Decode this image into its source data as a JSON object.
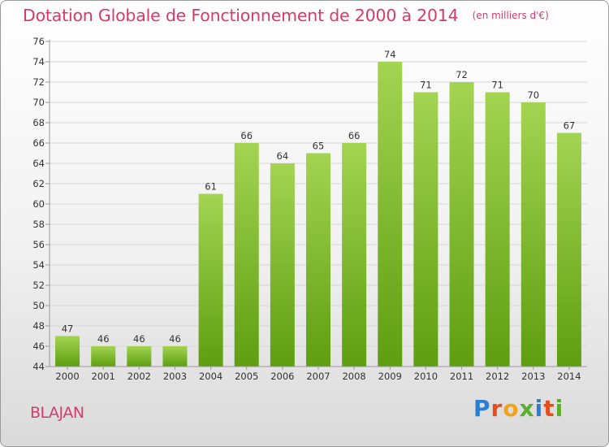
{
  "title": "Dotation Globale de Fonctionnement de 2000 à 2014",
  "unit_label": "(en milliers d'€)",
  "commune": "BLAJAN",
  "logo": {
    "text": "Proxiti",
    "colors": [
      "#2a7fd4",
      "#e84e1b",
      "#f3a21a",
      "#5aae2e",
      "#2a7fd4",
      "#e84e1b",
      "#5aae2e"
    ]
  },
  "colors": {
    "title": "#d83a6a",
    "bar_light": "#a3d452",
    "bar_dark": "#5e9e10",
    "grid": "#d6d6d6",
    "axis": "#999999",
    "text": "#333333"
  },
  "chart_data": {
    "type": "bar",
    "title": "Dotation Globale de Fonctionnement de 2000 à 2014",
    "xlabel": "",
    "ylabel": "",
    "ylim": [
      44,
      76
    ],
    "ytick_step": 2,
    "grid": true,
    "categories": [
      "2000",
      "2001",
      "2002",
      "2003",
      "2004",
      "2005",
      "2006",
      "2007",
      "2008",
      "2009",
      "2010",
      "2011",
      "2012",
      "2013",
      "2014"
    ],
    "values": [
      47,
      46,
      46,
      46,
      61,
      66,
      64,
      65,
      66,
      74,
      71,
      72,
      71,
      70,
      67
    ]
  }
}
